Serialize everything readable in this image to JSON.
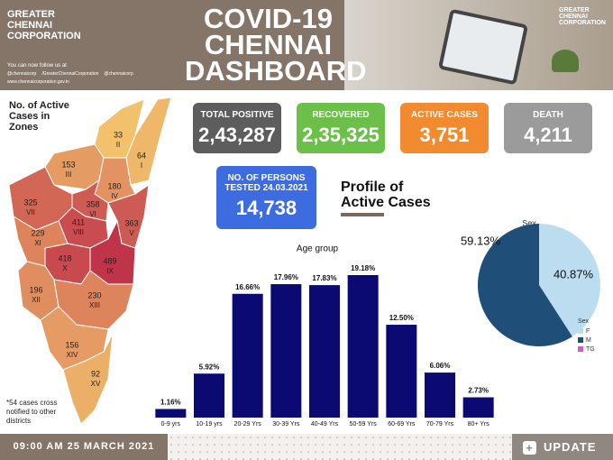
{
  "header": {
    "org": "GREATER CHENNAI CORPORATION",
    "title": "COVID-19 CHENNAI DASHBOARD",
    "follow": "You can now follow us at",
    "social": [
      "@chennaicorp",
      "/GreaterChennaiCorporation",
      "@chennaicorp"
    ],
    "website": "www.chennaicorporation.gov.in",
    "photo_logo": "GREATER CHENNAI CORPORATION"
  },
  "kpis": [
    {
      "label": "TOTAL POSITIVE",
      "value": "2,43,287",
      "color": "#5d5d5d"
    },
    {
      "label": "RECOVERED",
      "value": "2,35,325",
      "color": "#6cc04a"
    },
    {
      "label": "ACTIVE CASES",
      "value": "3,751",
      "color": "#f28b30"
    },
    {
      "label": "DEATH",
      "value": "4,211",
      "color": "#9b9b9b"
    }
  ],
  "tested": {
    "label": "NO. OF PERSONS TESTED 24.03.2021",
    "value": "14,738",
    "color": "#3d6be0"
  },
  "profile_title": "Profile of Active Cases",
  "map": {
    "title": "No. of Active Cases in Zones",
    "note": "*54 cases cross notified to other districts",
    "zones": [
      {
        "name": "I",
        "value": 64
      },
      {
        "name": "II",
        "value": 33
      },
      {
        "name": "III",
        "value": 153
      },
      {
        "name": "IV",
        "value": 180
      },
      {
        "name": "V",
        "value": 363
      },
      {
        "name": "VI",
        "value": 358
      },
      {
        "name": "VII",
        "value": 325
      },
      {
        "name": "VIII",
        "value": 411
      },
      {
        "name": "IX",
        "value": 489
      },
      {
        "name": "X",
        "value": 418
      },
      {
        "name": "XI",
        "value": 229
      },
      {
        "name": "XII",
        "value": 196
      },
      {
        "name": "XIII",
        "value": 230
      },
      {
        "name": "XIV",
        "value": 156
      },
      {
        "name": "XV",
        "value": 92
      }
    ]
  },
  "footer": {
    "timestamp": "09:00 AM 25 MARCH 2021",
    "button": "UPDATE"
  },
  "chart_data": [
    {
      "type": "bar",
      "title": "Age group",
      "categories": [
        "0-9 yrs",
        "10-19 yrs",
        "20-29 Yrs",
        "30-39 Yrs",
        "40-49 Yrs",
        "50-59 Yrs",
        "60-69 Yrs",
        "70-79 Yrs",
        "80+ Yrs"
      ],
      "values": [
        1.16,
        5.92,
        16.66,
        17.96,
        17.83,
        19.18,
        12.5,
        6.06,
        2.73
      ],
      "value_labels": [
        "1.16%",
        "5.92%",
        "16.66%",
        "17.96%",
        "17.83%",
        "19.18%",
        "12.50%",
        "6.06%",
        "2.73%"
      ],
      "color": "#0a0a72"
    },
    {
      "type": "pie",
      "title": "Sex",
      "categories": [
        "F",
        "M",
        "TG"
      ],
      "values": [
        40.87,
        59.13,
        0
      ],
      "value_labels": [
        "40.87%",
        "59.13%",
        null
      ],
      "colors": [
        "#bcdcf0",
        "#1f4e79",
        "#d25ad2"
      ]
    }
  ]
}
